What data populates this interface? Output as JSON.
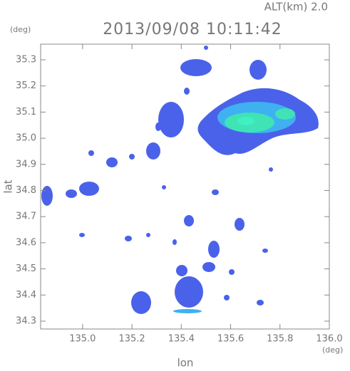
{
  "chart_data": {
    "type": "radar-map",
    "title": "2013/09/08 10:11:42",
    "subtitle": "ALT(km) 2.0",
    "y_unit": "(deg)",
    "x_unit": "(deg)",
    "x_label": "lon",
    "y_label": "lat",
    "xlim": [
      134.83,
      136.0
    ],
    "ylim": [
      34.27,
      35.36
    ],
    "xticks": [
      {
        "value": 135,
        "label": "135.0"
      },
      135.2,
      135.4,
      135.6,
      135.8,
      {
        "value": 136,
        "label": "136.0"
      }
    ],
    "yticks": [
      34.3,
      34.4,
      34.5,
      34.6,
      34.7,
      34.8,
      34.9,
      {
        "value": 35,
        "label": "35.0"
      },
      35.1,
      35.2,
      35.3
    ]
  }
}
